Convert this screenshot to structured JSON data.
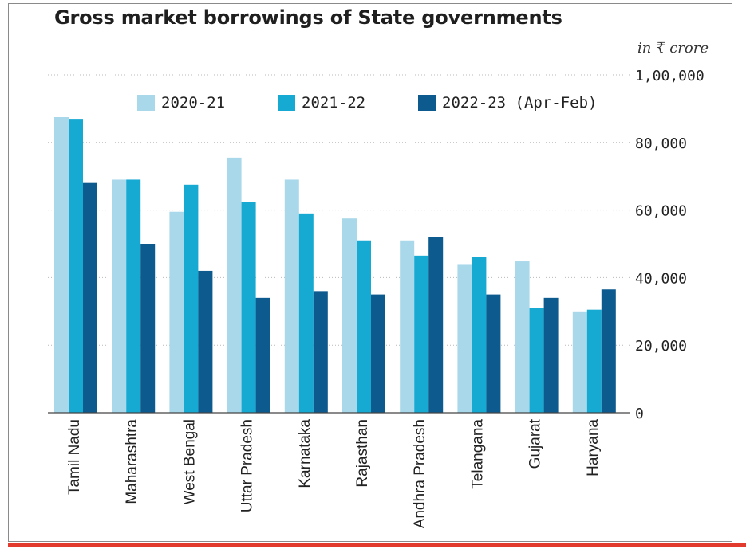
{
  "title": "Gross market borrowings of State governments",
  "unit_label": "in ₹ crore",
  "colors": {
    "2020-21": "#a9d8ea",
    "2021-22": "#16a9d2",
    "2022-23": "#0d5a8e",
    "frame": "#8a8a8a",
    "accent_rule": "#e23a2c"
  },
  "chart_data": {
    "type": "bar",
    "title": "Gross market borrowings of State governments",
    "ylabel": "in ₹ crore",
    "ylim": [
      0,
      100000
    ],
    "yticks": [
      0,
      20000,
      40000,
      60000,
      80000,
      100000
    ],
    "ytick_labels": [
      "0",
      "20,000",
      "40,000",
      "60,000",
      "80,000",
      "1,00,000"
    ],
    "grid": "dotted horizontal",
    "legend_position": "top",
    "categories": [
      "Tamil Nadu",
      "Maharashtra",
      "West Bengal",
      "Uttar Pradesh",
      "Karnataka",
      "Rajasthan",
      "Andhra Pradesh",
      "Telangana",
      "Gujarat",
      "Haryana"
    ],
    "series": [
      {
        "name": "2020-21",
        "values": [
          87500,
          69000,
          59500,
          75500,
          69000,
          57500,
          51000,
          44000,
          44800,
          30000
        ]
      },
      {
        "name": "2021-22",
        "values": [
          87000,
          69000,
          67500,
          62500,
          59000,
          51000,
          46500,
          46000,
          31000,
          30500
        ]
      },
      {
        "name": "2022-23 (Apr-Feb)",
        "values": [
          68000,
          50000,
          42000,
          34000,
          36000,
          35000,
          52000,
          35000,
          34000,
          36500
        ]
      }
    ]
  }
}
